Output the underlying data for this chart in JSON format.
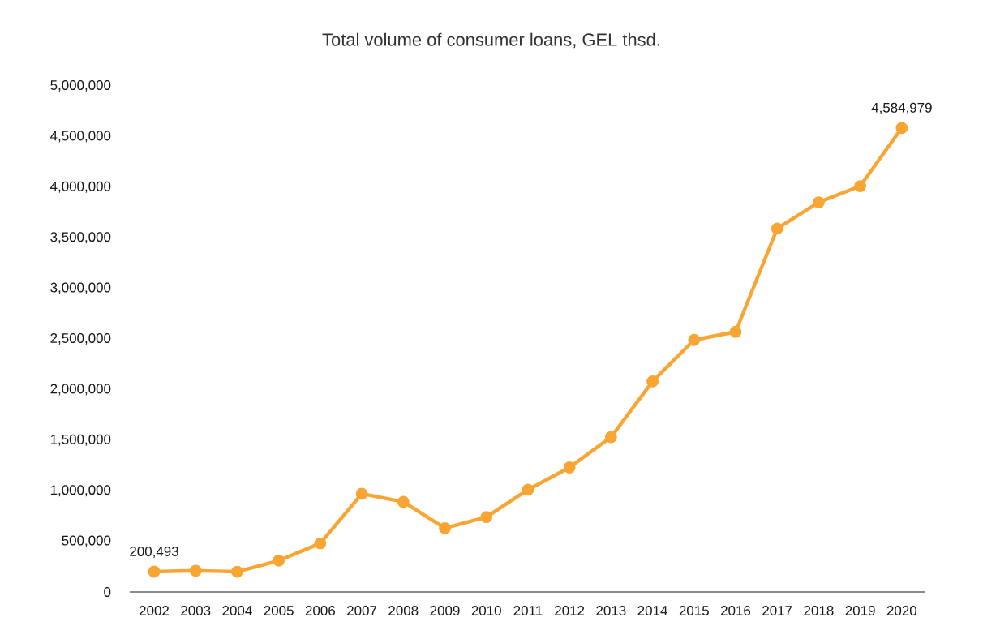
{
  "chart_data": {
    "type": "line",
    "title": "Total volume of consumer loans, GEL thsd.",
    "categories": [
      "2002",
      "2003",
      "2004",
      "2005",
      "2006",
      "2007",
      "2008",
      "2009",
      "2010",
      "2011",
      "2012",
      "2013",
      "2014",
      "2015",
      "2016",
      "2017",
      "2018",
      "2019",
      "2020"
    ],
    "values": [
      200493,
      210000,
      200000,
      310000,
      480000,
      970000,
      890000,
      630000,
      740000,
      1010000,
      1230000,
      1530000,
      2080000,
      2490000,
      2570000,
      3590000,
      3850000,
      4010000,
      4584979
    ],
    "value_labels": [
      "200,493",
      null,
      null,
      null,
      null,
      null,
      null,
      null,
      null,
      null,
      null,
      null,
      null,
      null,
      null,
      null,
      null,
      null,
      "4,584,979"
    ],
    "color": "#f9a533",
    "ylim": [
      0,
      5000000
    ],
    "yticks": [
      {
        "value": 0,
        "label": "0"
      },
      {
        "value": 500000,
        "label": "500,000"
      },
      {
        "value": 1000000,
        "label": "1,000,000"
      },
      {
        "value": 1500000,
        "label": "1,500,000"
      },
      {
        "value": 2000000,
        "label": "2,000,000"
      },
      {
        "value": 2500000,
        "label": "2,500,000"
      },
      {
        "value": 3000000,
        "label": "3,000,000"
      },
      {
        "value": 3500000,
        "label": "3,500,000"
      },
      {
        "value": 4000000,
        "label": "4,000,000"
      },
      {
        "value": 4500000,
        "label": "4,500,000"
      },
      {
        "value": 5000000,
        "label": "5,000,000"
      }
    ],
    "marker": "circle",
    "line_style": "solid"
  }
}
